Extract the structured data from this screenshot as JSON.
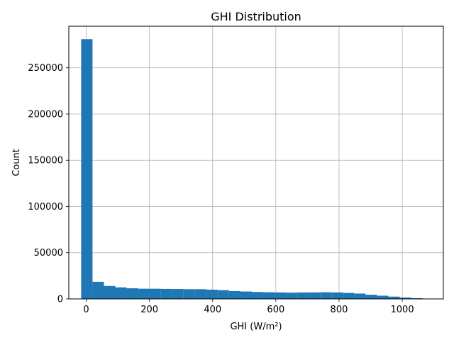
{
  "chart_data": {
    "type": "bar",
    "title": "GHI Distribution",
    "xlabel": "GHI (W/m²)",
    "ylabel": "Count",
    "xlim": [
      -55,
      1130
    ],
    "ylim": [
      0,
      295000
    ],
    "grid": true,
    "bar_color": "#1f77b4",
    "x_ticks": [
      0,
      200,
      400,
      600,
      800,
      1000
    ],
    "y_ticks": [
      0,
      50000,
      100000,
      150000,
      200000,
      250000
    ],
    "bin_edges": [
      -16,
      20,
      56,
      92,
      128,
      164,
      200,
      236,
      272,
      308,
      344,
      380,
      416,
      452,
      488,
      524,
      560,
      596,
      632,
      668,
      704,
      740,
      776,
      812,
      848,
      884,
      920,
      956,
      992,
      1028,
      1064,
      1100
    ],
    "values": [
      281000,
      18500,
      14000,
      12500,
      11500,
      11000,
      11000,
      10800,
      10700,
      10500,
      10500,
      10000,
      9500,
      8500,
      8000,
      7500,
      7200,
      7000,
      6800,
      7000,
      7000,
      7200,
      7000,
      6500,
      5800,
      4500,
      3500,
      2500,
      1500,
      800,
      200
    ]
  }
}
